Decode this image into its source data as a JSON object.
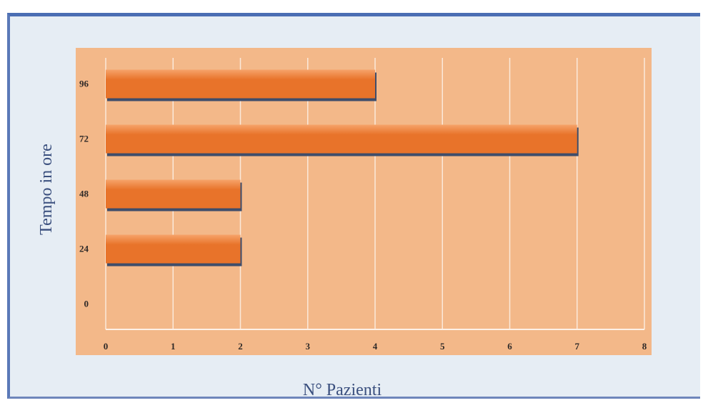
{
  "chart_data": {
    "type": "bar",
    "orientation": "horizontal",
    "title": "",
    "xlabel": "N° Pazienti",
    "ylabel": "Tempo in ore",
    "categories": [
      "0",
      "24",
      "48",
      "72",
      "96"
    ],
    "values": [
      0,
      2,
      2,
      7,
      4
    ],
    "xlim": [
      0,
      8
    ],
    "xticks": [
      "0",
      "1",
      "2",
      "3",
      "4",
      "5",
      "6",
      "7",
      "8"
    ],
    "grid": true,
    "legend": "none",
    "colors": {
      "bar": "#e8732a",
      "bar_highlight": "#f6a36a",
      "bar_shadow": "#3e4d6b",
      "plot_background": "#f3b889",
      "frame_background": "#e6edf4",
      "frame_border": "#4b6eb3"
    }
  }
}
